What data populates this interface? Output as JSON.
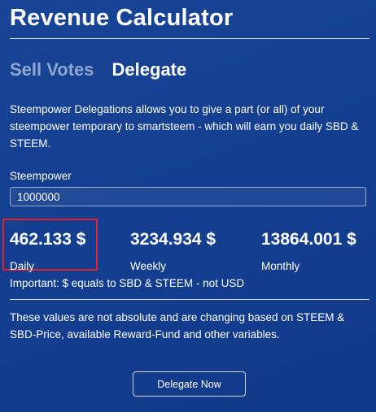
{
  "header": {
    "title": "Revenue Calculator"
  },
  "tabs": [
    {
      "label": "Sell Votes",
      "active": false
    },
    {
      "label": "Delegate",
      "active": true
    }
  ],
  "description": "Steempower Delegations allows you to give a part (or all) of your steempower temporary to smartsteem - which will earn you daily SBD & STEEM.",
  "steempower": {
    "label": "Steempower",
    "value": "1000000"
  },
  "stats": {
    "daily": {
      "value": "462.133 $",
      "label": "Daily"
    },
    "weekly": {
      "value": "3234.934 $",
      "label": "Weekly"
    },
    "monthly": {
      "value": "13864.001 $",
      "label": "Monthly"
    }
  },
  "important_note": "Important: $ equals to SBD & STEEM - not USD",
  "disclaimer": "These values are not absolute and are changing based on STEEM & SBD-Price, available Reward-Fund and other variables.",
  "actions": {
    "delegate_label": "Delegate Now"
  },
  "colors": {
    "background": "#143f90",
    "highlight_border": "#e3222b",
    "inactive_tab": "#8ea7cf"
  }
}
